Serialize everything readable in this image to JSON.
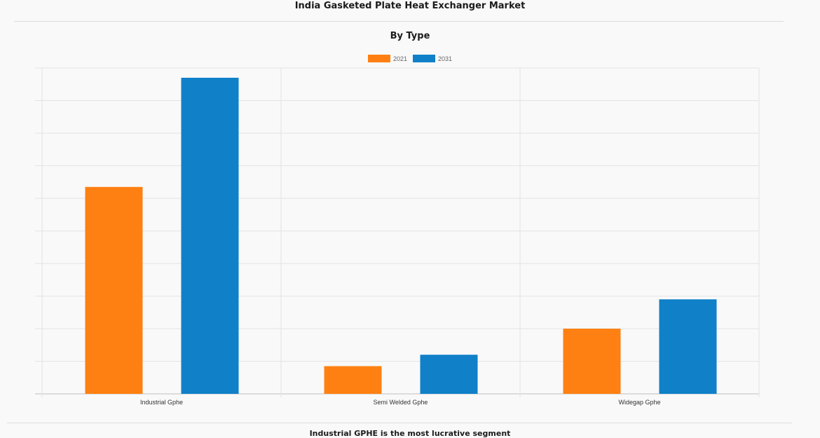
{
  "page": {
    "title": "India Gasketed Plate Heat Exchanger Market",
    "footer": "Industrial GPHE is the most lucrative segment"
  },
  "chart_data": {
    "type": "bar",
    "title": "By Type",
    "xlabel": "",
    "ylabel": "",
    "categories": [
      "Industrial Gphe",
      "Semi Welded Gphe",
      "Widegap Gphe"
    ],
    "series": [
      {
        "name": "2021",
        "color": "#ff8012",
        "values": [
          63.5,
          8.5,
          20
        ]
      },
      {
        "name": "2031",
        "color": "#1080c8",
        "values": [
          97,
          12,
          29
        ]
      }
    ],
    "ylim": [
      0,
      100
    ],
    "grid": true,
    "legend_position": "top-center"
  }
}
